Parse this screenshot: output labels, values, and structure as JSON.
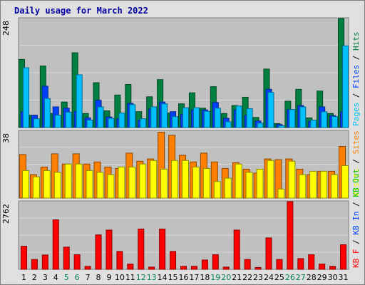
{
  "chart_data": {
    "type": "bar",
    "title": "Daily usage for March 2022",
    "colors": {
      "background": "#e0e0e0",
      "plot": "#c0c0c0",
      "pages": "#00c0ff",
      "files": "#0040ff",
      "hits": "#008040",
      "visits": "#ffff00",
      "sites": "#ff8000",
      "kbytes": "#ff0000",
      "weekday_label": "#000000",
      "weekend_label": "#00805c"
    },
    "days": [
      {
        "label": "1",
        "weekend": false
      },
      {
        "label": "2",
        "weekend": false
      },
      {
        "label": "3",
        "weekend": false
      },
      {
        "label": "4",
        "weekend": false
      },
      {
        "label": "5",
        "weekend": true
      },
      {
        "label": "6",
        "weekend": true
      },
      {
        "label": "7",
        "weekend": false
      },
      {
        "label": "8",
        "weekend": false
      },
      {
        "label": "9",
        "weekend": false
      },
      {
        "label": "10",
        "weekend": false
      },
      {
        "label": "11",
        "weekend": false
      },
      {
        "label": "12",
        "weekend": true
      },
      {
        "label": "13",
        "weekend": true
      },
      {
        "label": "14",
        "weekend": false
      },
      {
        "label": "15",
        "weekend": false
      },
      {
        "label": "16",
        "weekend": false
      },
      {
        "label": "17",
        "weekend": false
      },
      {
        "label": "18",
        "weekend": false
      },
      {
        "label": "19",
        "weekend": true
      },
      {
        "label": "20",
        "weekend": true
      },
      {
        "label": "21",
        "weekend": false
      },
      {
        "label": "22",
        "weekend": false
      },
      {
        "label": "23",
        "weekend": false
      },
      {
        "label": "24",
        "weekend": false
      },
      {
        "label": "25",
        "weekend": false
      },
      {
        "label": "26",
        "weekend": true
      },
      {
        "label": "27",
        "weekend": true
      },
      {
        "label": "28",
        "weekend": false
      },
      {
        "label": "29",
        "weekend": false
      },
      {
        "label": "30",
        "weekend": false
      },
      {
        "label": "31",
        "weekend": false
      }
    ],
    "panels": [
      {
        "id": "hits",
        "ymax_label": "248",
        "ylim": [
          0,
          248
        ],
        "grid": true,
        "legend": {
          "position": "right",
          "separator": " / ",
          "items": [
            {
              "text": "Pages",
              "color": "#00c0ff"
            },
            {
              "text": "Files",
              "color": "#0040ff"
            },
            {
              "text": "Hits",
              "color": "#008040"
            }
          ]
        },
        "series": [
          {
            "name": "Hits",
            "color": "#008040",
            "values": [
              155,
              28,
              140,
              32,
              58,
              170,
              32,
              102,
              38,
              74,
              98,
              36,
              70,
              109,
              33,
              54,
              79,
              44,
              93,
              32,
              50,
              69,
              23,
              133,
              9,
              60,
              87,
              22,
              83,
              32,
              248
            ]
          },
          {
            "name": "Files",
            "color": "#0040ff",
            "values": [
              36,
              28,
              94,
              47,
              44,
              37,
              22,
              62,
              24,
              20,
              55,
              17,
              42,
              58,
              36,
              30,
              40,
              40,
              57,
              21,
              40,
              28,
              15,
              87,
              7,
              41,
              50,
              14,
              47,
              27,
              36
            ]
          },
          {
            "name": "Pages",
            "color": "#00c0ff",
            "values": [
              136,
              20,
              66,
              28,
              35,
              120,
              17,
              47,
              21,
              33,
              52,
              20,
              47,
              54,
              25,
              45,
              45,
              37,
              44,
              13,
              49,
              43,
              10,
              80,
              4,
              41,
              47,
              17,
              36,
              25,
              186
            ]
          }
        ]
      },
      {
        "id": "visits",
        "ymax_label": "38",
        "ylim": [
          0,
          38
        ],
        "grid": true,
        "legend": {
          "position": "right",
          "separator": " / ",
          "items": [
            {
              "text": "Visits",
              "color": "#ffff00"
            },
            {
              "text": "Sites",
              "color": "#ff8000"
            }
          ]
        },
        "series": [
          {
            "name": "Sites",
            "color": "#ff8000",
            "values": [
              24.7,
              13.3,
              17.6,
              25.1,
              19.3,
              25.1,
              19.3,
              20.5,
              17.6,
              16.8,
              25.5,
              20.9,
              22.2,
              37.4,
              35.6,
              24.3,
              20.5,
              25.5,
              20.5,
              16.8,
              20.1,
              16.4,
              14.2,
              22.2,
              21.8,
              22.2,
              16.4,
              13.3,
              15.2,
              15.2,
              29.3
            ]
          },
          {
            "name": "Visits",
            "color": "#ffff00",
            "values": [
              15.6,
              12.1,
              15.6,
              14.6,
              19.3,
              19.3,
              15.6,
              14.6,
              13.3,
              17.6,
              17.6,
              19.3,
              21.3,
              16.4,
              21.3,
              21.3,
              17.6,
              16.8,
              9.4,
              11.3,
              19.3,
              14.6,
              16.4,
              21.3,
              5.1,
              20.9,
              13.3,
              15.2,
              15.2,
              13.3,
              18.4
            ]
          }
        ]
      },
      {
        "id": "kbytes",
        "ymax_label": "2762",
        "ylim": [
          0,
          2762
        ],
        "grid": true,
        "legend": {
          "position": "right",
          "separator": " / ",
          "items": [
            {
              "text": "KB F",
              "color": "#ff0000"
            },
            {
              "text": "KB In",
              "color": "#0040ff"
            },
            {
              "text": "KB Out",
              "color": "#00c000"
            }
          ]
        },
        "series": [
          {
            "name": "KB F",
            "color": "#ff0000",
            "values": [
              942,
              403,
              585,
              2021,
              906,
              599,
              119,
              1405,
              1601,
              729,
              216,
              1645,
              92,
              1645,
              729,
              122,
              122,
              380,
              599,
              92,
              1601,
              403,
              76,
              1283,
              403,
              2762,
              438,
              599,
              216,
              122,
              1005
            ]
          }
        ]
      }
    ]
  }
}
